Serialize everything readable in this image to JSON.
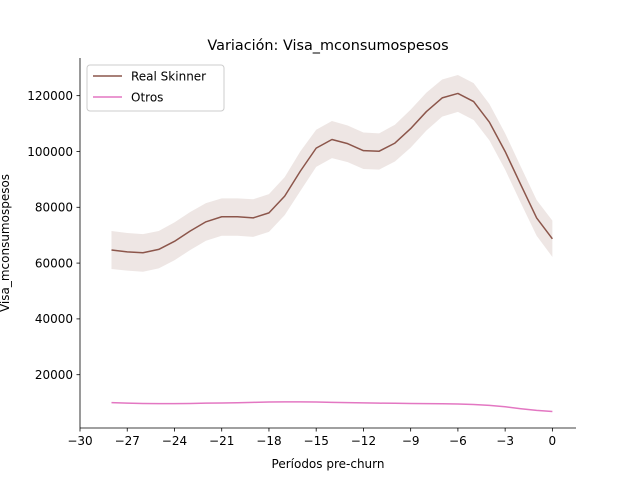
{
  "chart_data": {
    "type": "line",
    "title": "Variación: Visa_mconsumospesos",
    "xlabel": "Períodos pre-churn",
    "ylabel": "Visa_mconsumospesos",
    "xlim": [
      -30,
      1.5
    ],
    "ylim": [
      900,
      133500
    ],
    "xticks": [
      "−30",
      "−27",
      "−24",
      "−21",
      "−18",
      "−15",
      "−12",
      "−9",
      "−6",
      "−3",
      "0"
    ],
    "yticks": [
      "20000",
      "40000",
      "60000",
      "80000",
      "100000",
      "120000"
    ],
    "grid": false,
    "legend_position": "top-left",
    "x": [
      -28,
      -27,
      -26,
      -25,
      -24,
      -23,
      -22,
      -21,
      -20,
      -19,
      -18,
      -17,
      -16,
      -15,
      -14,
      -13,
      -12,
      -11,
      -10,
      -9,
      -8,
      -7,
      -6,
      -5,
      -4,
      -3,
      -2,
      -1,
      0
    ],
    "series": [
      {
        "name": "Real Skinner",
        "color": "#8c564b",
        "values": [
          64700,
          64000,
          63700,
          64900,
          67800,
          71500,
          74800,
          76600,
          76600,
          76200,
          78000,
          84000,
          93000,
          101200,
          104300,
          102800,
          100300,
          100100,
          103000,
          108200,
          114300,
          119200,
          120800,
          117900,
          110500,
          100000,
          88000,
          76200,
          68700
        ],
        "ci_upper": [
          71500,
          70800,
          70400,
          71500,
          74600,
          78300,
          81500,
          83200,
          83200,
          82900,
          84700,
          90800,
          100100,
          107800,
          110900,
          109300,
          106800,
          106500,
          109600,
          115000,
          121100,
          125800,
          127400,
          124500,
          117000,
          106500,
          94500,
          82600,
          75200
        ],
        "ci_lower": [
          57900,
          57300,
          56900,
          58100,
          61000,
          64700,
          68000,
          69800,
          69800,
          69400,
          71200,
          77200,
          85900,
          94500,
          97600,
          96200,
          93700,
          93500,
          96400,
          101400,
          107500,
          112500,
          114200,
          111300,
          104000,
          93500,
          81500,
          69800,
          62200
        ]
      },
      {
        "name": "Otros",
        "color": "#e377c2",
        "values": [
          10000,
          9800,
          9700,
          9650,
          9650,
          9700,
          9800,
          9850,
          9950,
          10100,
          10200,
          10250,
          10250,
          10200,
          10100,
          10000,
          9900,
          9800,
          9750,
          9700,
          9650,
          9600,
          9500,
          9300,
          9000,
          8500,
          7800,
          7200,
          6800
        ]
      }
    ]
  }
}
